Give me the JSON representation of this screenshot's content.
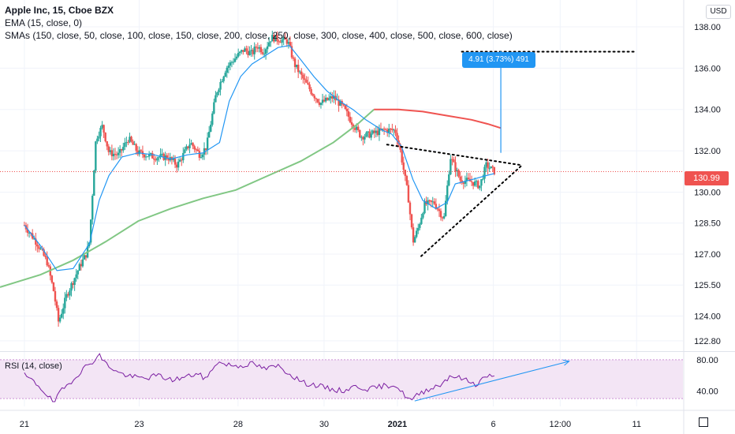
{
  "legend": {
    "title": "Apple Inc, 15, Cboe BZX",
    "ema": "EMA (15, close, 0)",
    "sma": "SMAs (150, close, 50, close, 100, close, 150, close, 200, close, 250, close, 300, close, 400, close, 500, close, 600, close)",
    "rsi": "RSI (14, close)"
  },
  "currency": "USD",
  "last_price_label": "130.99",
  "measure_label": "4.91 (3.73%) 491",
  "colors": {
    "up": "#26a69a",
    "down": "#ef5350",
    "ema": "#2196f3",
    "sma_green": "#81c784",
    "sma_red": "#ef5350",
    "rsi": "#7b1fa2",
    "rsi_band": "#f3e5f5",
    "pattern": "#000000",
    "measure": "#2196f3"
  },
  "chart_data": [
    {
      "type": "candlestick",
      "title": "Apple Inc, 15, Cboe BZX",
      "y_ticks": [
        "138.00",
        "136.00",
        "134.00",
        "132.00",
        "130.00",
        "128.50",
        "127.00",
        "125.50",
        "124.00",
        "122.80"
      ],
      "y_tick_values": [
        138.0,
        136.0,
        134.0,
        132.0,
        130.0,
        128.5,
        127.0,
        125.5,
        124.0,
        122.8
      ],
      "x_ticks": [
        "21",
        "23",
        "28",
        "30",
        "2021",
        "6",
        "12:00",
        "11"
      ],
      "x_tick_positions": [
        0.0,
        7.06,
        13.14,
        18.43,
        22.94,
        28.84,
        32.95,
        37.65
      ],
      "ylim": [
        122.3,
        139.3
      ],
      "xlim": [
        -1.5,
        40.5
      ],
      "last_price": 130.99,
      "anchors": [
        [
          0,
          128.4
        ],
        [
          0.8,
          127.5
        ],
        [
          1.4,
          126.6
        ],
        [
          1.8,
          125.2
        ],
        [
          2.1,
          123.7
        ],
        [
          2.6,
          125.0
        ],
        [
          3.4,
          126.4
        ],
        [
          3.8,
          127.0
        ],
        [
          4.0,
          127.6
        ],
        [
          4.4,
          132.6
        ],
        [
          4.8,
          133.2
        ],
        [
          5.2,
          131.9
        ],
        [
          5.8,
          131.8
        ],
        [
          6.4,
          132.6
        ],
        [
          7.0,
          131.9
        ],
        [
          8.0,
          131.7
        ],
        [
          8.8,
          131.7
        ],
        [
          9.4,
          131.3
        ],
        [
          10.2,
          132.4
        ],
        [
          10.8,
          131.8
        ],
        [
          11.2,
          132.2
        ],
        [
          11.8,
          134.8
        ],
        [
          12.4,
          136.0
        ],
        [
          13.1,
          136.6
        ],
        [
          13.5,
          136.9
        ],
        [
          14.0,
          136.7
        ],
        [
          14.3,
          137.1
        ],
        [
          14.7,
          136.8
        ],
        [
          15.2,
          137.5
        ],
        [
          15.6,
          137.4
        ],
        [
          16.2,
          137.3
        ],
        [
          16.6,
          136.2
        ],
        [
          17.2,
          135.4
        ],
        [
          17.7,
          134.8
        ],
        [
          18.2,
          134.3
        ],
        [
          19.0,
          134.6
        ],
        [
          19.6,
          134.1
        ],
        [
          20.2,
          133.3
        ],
        [
          20.7,
          132.7
        ],
        [
          21.3,
          132.8
        ],
        [
          22.1,
          133.0
        ],
        [
          22.8,
          133.0
        ],
        [
          23.1,
          132.1
        ],
        [
          23.6,
          129.8
        ],
        [
          23.9,
          127.6
        ],
        [
          24.2,
          128.2
        ],
        [
          24.6,
          129.4
        ],
        [
          25.2,
          129.5
        ],
        [
          25.8,
          128.7
        ],
        [
          26.2,
          131.7
        ],
        [
          26.8,
          130.6
        ],
        [
          27.5,
          130.5
        ],
        [
          28.0,
          130.3
        ],
        [
          28.4,
          131.3
        ],
        [
          28.9,
          131.0
        ]
      ],
      "ema": [
        [
          0,
          128.4
        ],
        [
          1.0,
          127.4
        ],
        [
          2.0,
          126.2
        ],
        [
          3.0,
          126.3
        ],
        [
          4.0,
          127.5
        ],
        [
          4.6,
          129.6
        ],
        [
          5.2,
          130.8
        ],
        [
          6.0,
          131.7
        ],
        [
          7.0,
          131.9
        ],
        [
          8.0,
          131.8
        ],
        [
          9.0,
          131.6
        ],
        [
          10.0,
          131.8
        ],
        [
          11.0,
          131.9
        ],
        [
          12.0,
          132.4
        ],
        [
          12.6,
          134.4
        ],
        [
          13.3,
          135.6
        ],
        [
          14.0,
          136.2
        ],
        [
          14.8,
          136.6
        ],
        [
          15.6,
          137.0
        ],
        [
          16.3,
          137.1
        ],
        [
          17.0,
          136.4
        ],
        [
          17.8,
          135.6
        ],
        [
          18.6,
          134.9
        ],
        [
          19.4,
          134.4
        ],
        [
          20.2,
          134.0
        ],
        [
          21.0,
          133.5
        ],
        [
          22.0,
          133.0
        ],
        [
          22.6,
          132.8
        ],
        [
          23.2,
          132.2
        ],
        [
          23.9,
          130.6
        ],
        [
          24.5,
          129.6
        ],
        [
          25.3,
          129.2
        ],
        [
          26.0,
          129.5
        ],
        [
          26.5,
          130.4
        ],
        [
          27.5,
          130.6
        ],
        [
          28.4,
          130.8
        ],
        [
          28.9,
          130.9
        ]
      ],
      "sma_green": [
        [
          -1.5,
          125.4
        ],
        [
          1.0,
          126.0
        ],
        [
          3.0,
          126.7
        ],
        [
          5.0,
          127.6
        ],
        [
          7.0,
          128.6
        ],
        [
          9.0,
          129.2
        ],
        [
          11.0,
          129.7
        ],
        [
          13.0,
          130.1
        ],
        [
          15.0,
          130.8
        ],
        [
          17.0,
          131.5
        ],
        [
          19.0,
          132.4
        ],
        [
          20.5,
          133.3
        ],
        [
          21.5,
          134.0
        ]
      ],
      "sma_red": [
        [
          21.5,
          134.0
        ],
        [
          23.0,
          134.0
        ],
        [
          24.5,
          133.9
        ],
        [
          26.0,
          133.7
        ],
        [
          27.5,
          133.5
        ],
        [
          28.5,
          133.3
        ],
        [
          29.3,
          133.1
        ]
      ],
      "annotations": [
        {
          "kind": "pattern_line",
          "from": [
            22.3,
            132.3
          ],
          "to": [
            30.6,
            131.3
          ]
        },
        {
          "kind": "pattern_line",
          "from": [
            24.4,
            126.9
          ],
          "to": [
            30.6,
            131.3
          ]
        },
        {
          "kind": "target_line",
          "from": [
            26.9,
            136.8
          ],
          "to": [
            37.5,
            136.8
          ]
        },
        {
          "kind": "measure_arrow",
          "from": [
            29.3,
            131.9
          ],
          "to": [
            29.3,
            136.8
          ]
        }
      ]
    },
    {
      "type": "line",
      "title": "RSI (14, close)",
      "y_ticks": [
        "80.00",
        "40.00"
      ],
      "y_tick_values": [
        80,
        40
      ],
      "band": [
        30,
        80
      ],
      "ylim": [
        20,
        90
      ],
      "anchors": [
        [
          0,
          60
        ],
        [
          0.8,
          48
        ],
        [
          1.4,
          35
        ],
        [
          1.8,
          24
        ],
        [
          2.2,
          38
        ],
        [
          3.0,
          55
        ],
        [
          3.6,
          68
        ],
        [
          4.2,
          78
        ],
        [
          4.6,
          86
        ],
        [
          5.0,
          75
        ],
        [
          5.8,
          63
        ],
        [
          6.6,
          58
        ],
        [
          7.4,
          56
        ],
        [
          8.2,
          60
        ],
        [
          9.0,
          54
        ],
        [
          9.8,
          57
        ],
        [
          10.6,
          62
        ],
        [
          11.2,
          55
        ],
        [
          11.8,
          77
        ],
        [
          12.4,
          74
        ],
        [
          13.2,
          72
        ],
        [
          14.0,
          75
        ],
        [
          14.8,
          68
        ],
        [
          15.6,
          72
        ],
        [
          16.3,
          62
        ],
        [
          17.2,
          50
        ],
        [
          18.0,
          47
        ],
        [
          18.8,
          42
        ],
        [
          19.6,
          40
        ],
        [
          20.4,
          46
        ],
        [
          21.2,
          42
        ],
        [
          22.0,
          46
        ],
        [
          22.8,
          48
        ],
        [
          23.2,
          38
        ],
        [
          23.8,
          27
        ],
        [
          24.2,
          35
        ],
        [
          24.8,
          42
        ],
        [
          25.6,
          48
        ],
        [
          26.2,
          60
        ],
        [
          27.0,
          55
        ],
        [
          27.8,
          48
        ],
        [
          28.4,
          60
        ],
        [
          28.9,
          57
        ]
      ],
      "annotations": [
        {
          "kind": "divergence_arrow",
          "from": [
            24.0,
            27
          ],
          "to": [
            33.5,
            78
          ]
        }
      ]
    }
  ]
}
